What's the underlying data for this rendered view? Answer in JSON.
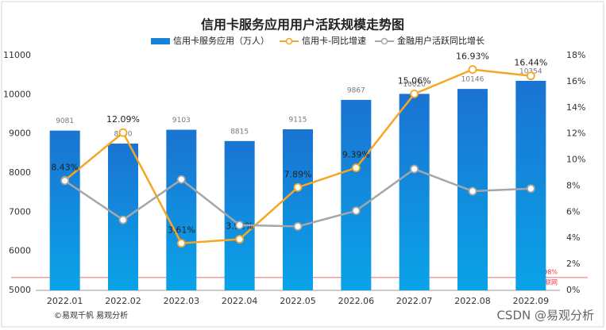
{
  "chart_data": {
    "type": "bar",
    "title": "信用卡服务应用用户活跃规模走势图",
    "categories": [
      "2022.01",
      "2022.02",
      "2022.03",
      "2022.04",
      "2022.05",
      "2022.06",
      "2022.07",
      "2022.08",
      "2022.09"
    ],
    "series": [
      {
        "name": "信用卡服务应用（万人）",
        "type": "bar",
        "color": "#1683d8",
        "values": [
          9081,
          8750,
          9103,
          8815,
          9115,
          9867,
          10020,
          10146,
          10354
        ]
      },
      {
        "name": "信用卡-同比增速",
        "type": "line",
        "axis": "y2",
        "color": "#f5a623",
        "values": [
          8.43,
          12.09,
          3.61,
          3.92,
          7.89,
          9.39,
          15.06,
          16.93,
          16.44
        ],
        "value_labels": [
          "8.43%",
          "12.09%",
          "3.61%",
          "3.92%",
          "7.89%",
          "9.39%",
          "15.06%",
          "16.93%",
          "16.44%"
        ]
      },
      {
        "name": "金融用户活跃同比增长",
        "type": "line",
        "axis": "y2",
        "color": "#a6a6a6",
        "values": [
          8.4,
          5.4,
          8.5,
          5.0,
          4.9,
          6.1,
          9.3,
          7.6,
          7.8
        ]
      }
    ],
    "ylim": [
      5000,
      11000
    ],
    "yticks": [
      5000,
      6000,
      7000,
      8000,
      9000,
      10000,
      11000
    ],
    "y2lim": [
      0,
      18
    ],
    "y2ticks": [
      {
        "value": 0,
        "label": "0%"
      },
      {
        "value": 2,
        "label": "2%"
      },
      {
        "value": 4,
        "label": "4%"
      },
      {
        "value": 6,
        "label": "6%"
      },
      {
        "value": 8,
        "label": "8%"
      },
      {
        "value": 10,
        "label": "10%"
      },
      {
        "value": 12,
        "label": "12%"
      },
      {
        "value": 14,
        "label": "14%"
      },
      {
        "value": 16,
        "label": "16%"
      },
      {
        "value": 18,
        "label": "18%"
      }
    ],
    "reference_line": {
      "value": 0.98,
      "label": "0.98%",
      "name": "移动互联网",
      "color": "#e8383d"
    },
    "source": "©易观千帆 易观分析",
    "watermark": "CSDN @易观分析"
  }
}
